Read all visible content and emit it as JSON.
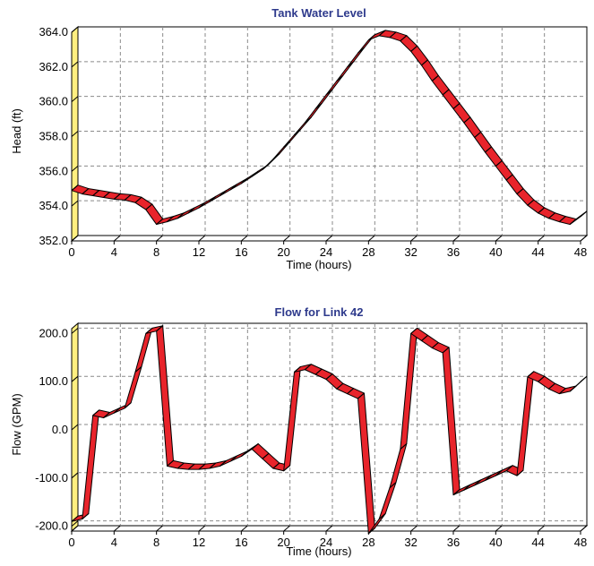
{
  "chart_data": [
    {
      "type": "line",
      "title": "Tank Water Level",
      "xlabel": "Time (hours)",
      "ylabel": "Head (ft)",
      "xlim": [
        0,
        48
      ],
      "ylim": [
        352.0,
        364.0
      ],
      "x_ticks": [
        "0",
        "4",
        "8",
        "12",
        "16",
        "20",
        "24",
        "28",
        "32",
        "36",
        "40",
        "44",
        "48"
      ],
      "y_ticks": [
        "352.0",
        "354.0",
        "356.0",
        "358.0",
        "360.0",
        "362.0",
        "364.0"
      ],
      "grid": true,
      "line_color": "#e8242b",
      "wall_color": "#ffef80",
      "series": [
        {
          "x": [
            0,
            1,
            2,
            3,
            4,
            5,
            6,
            7,
            8,
            9,
            10,
            11,
            12,
            13,
            14,
            15,
            16,
            17,
            18,
            19,
            20,
            21,
            22,
            23,
            24,
            25,
            26,
            27,
            28,
            29,
            30,
            31,
            32,
            33,
            34,
            35,
            36,
            37,
            38,
            39,
            40,
            41,
            42,
            43,
            44,
            45,
            46,
            47,
            48
          ],
          "values": [
            354.9,
            354.7,
            354.6,
            354.5,
            354.4,
            354.35,
            354.2,
            353.8,
            352.95,
            353.1,
            353.3,
            353.6,
            353.9,
            354.25,
            354.6,
            354.95,
            355.3,
            355.7,
            356.1,
            356.7,
            357.4,
            358.1,
            358.8,
            359.6,
            360.4,
            361.2,
            362.0,
            362.8,
            363.55,
            363.8,
            363.7,
            363.5,
            362.9,
            362.1,
            361.2,
            360.4,
            359.6,
            358.8,
            357.95,
            357.1,
            356.3,
            355.5,
            354.7,
            354.05,
            353.6,
            353.3,
            353.1,
            352.95,
            353.4
          ]
        }
      ]
    },
    {
      "type": "line",
      "title": "Flow for Link 42",
      "xlabel": "Time (hours)",
      "ylabel": "Flow (GPM)",
      "xlim": [
        0,
        48
      ],
      "ylim": [
        -210,
        210
      ],
      "x_ticks": [
        "0",
        "4",
        "8",
        "12",
        "16",
        "20",
        "24",
        "28",
        "32",
        "36",
        "40",
        "44",
        "48"
      ],
      "y_ticks": [
        "-200.0",
        "-100.0",
        "0.0",
        "100.0",
        "200.0"
      ],
      "y_tick_values": [
        -200,
        -100,
        0,
        100,
        200
      ],
      "grid": true,
      "line_color": "#e8242b",
      "wall_color": "#ffef80",
      "series": [
        {
          "x": [
            0,
            1,
            2,
            3,
            4,
            5,
            6,
            7,
            8,
            9,
            10,
            11,
            12,
            13,
            14,
            15,
            16,
            17,
            18,
            19,
            20,
            21,
            22,
            23,
            24,
            25,
            26,
            27,
            28,
            29,
            30,
            31,
            32,
            33,
            34,
            35,
            36,
            37,
            38,
            39,
            40,
            41,
            42,
            43,
            44,
            45,
            46,
            47,
            48
          ],
          "values": [
            -190,
            -185,
            30,
            25,
            35,
            45,
            120,
            200,
            205,
            -75,
            -80,
            -82,
            -82,
            -80,
            -75,
            -65,
            -55,
            -40,
            -60,
            -80,
            -85,
            120,
            125,
            115,
            105,
            85,
            75,
            65,
            -215,
            -185,
            -120,
            -40,
            200,
            185,
            170,
            160,
            -135,
            -125,
            -115,
            -105,
            -95,
            -85,
            -95,
            110,
            100,
            85,
            75,
            80,
            100
          ]
        }
      ]
    }
  ]
}
